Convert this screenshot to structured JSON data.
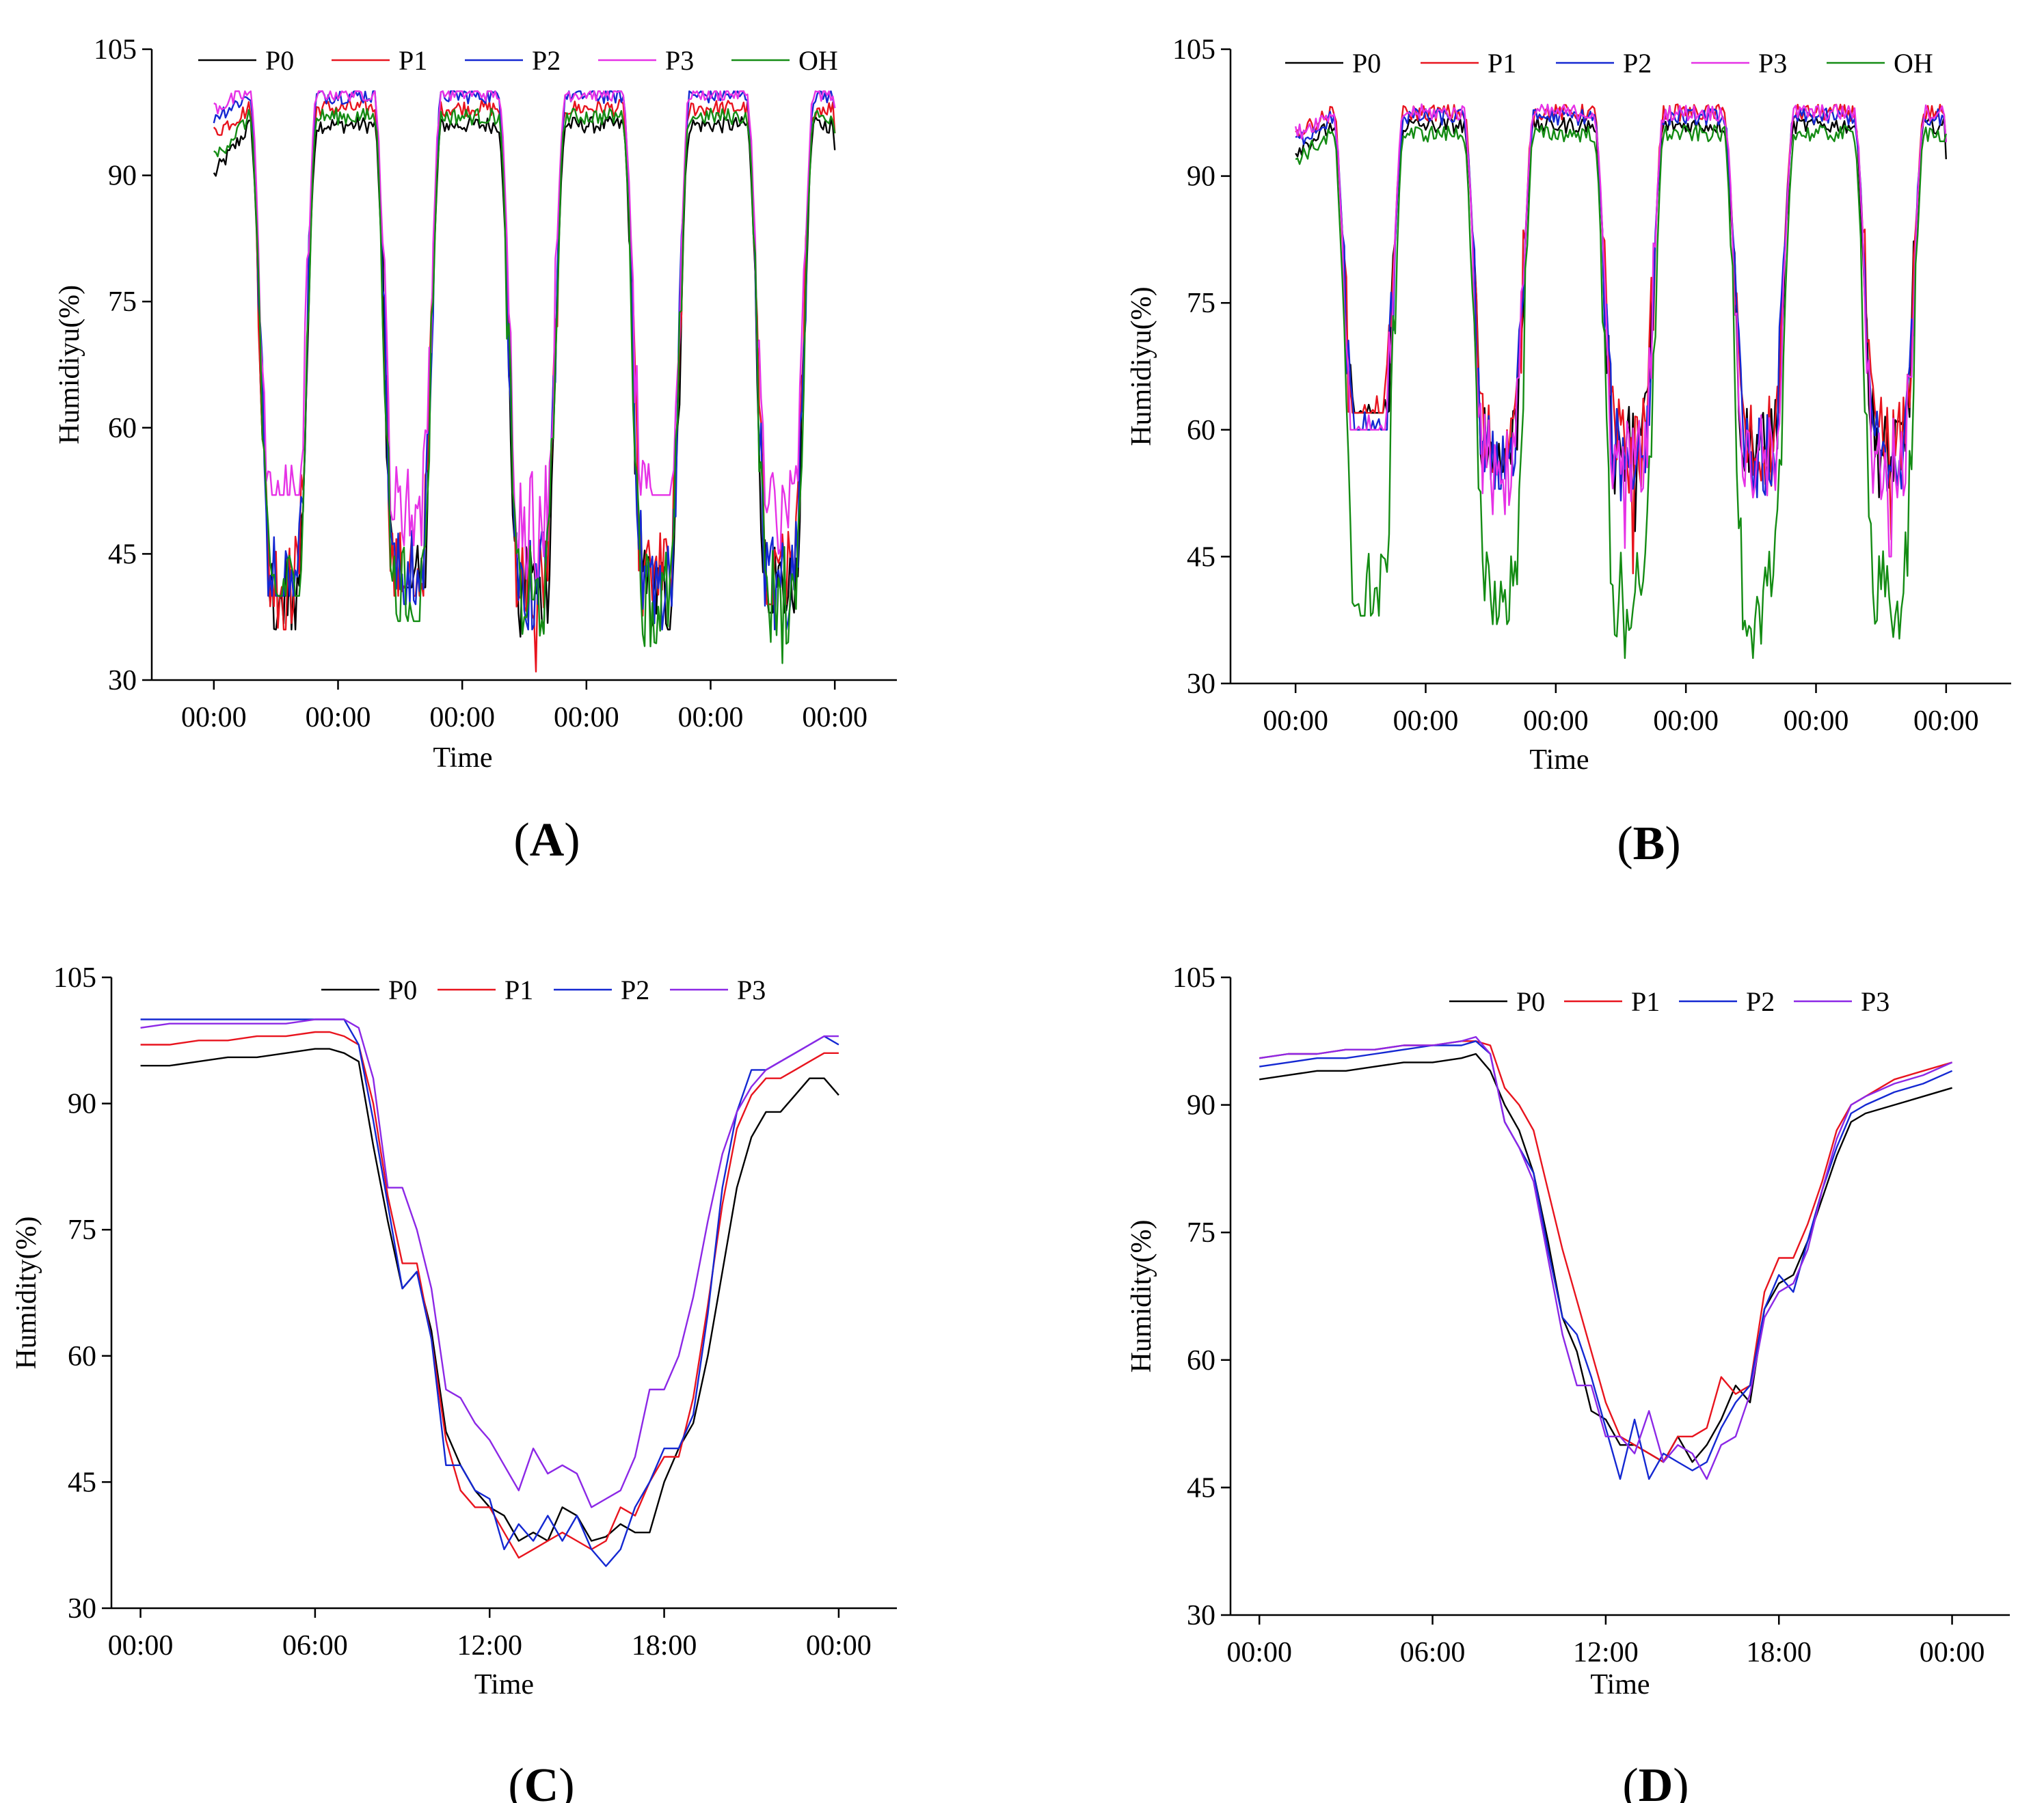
{
  "chart_data": [
    {
      "id": "A",
      "type": "line",
      "panel_label": "A",
      "xlabel": "Time",
      "ylabel": "Humidiyu(%)",
      "ylim": [
        30,
        105
      ],
      "yticks": [
        "30",
        "45",
        "60",
        "75",
        "90",
        "105"
      ],
      "xlim": [
        -0.5,
        5.5
      ],
      "xtick_labels": [
        "00:00",
        "00:00",
        "00:00",
        "00:00",
        "00:00",
        "00:00"
      ],
      "legend": [
        "P0",
        "P1",
        "P2",
        "P3",
        "OH"
      ],
      "series": [
        {
          "name": "P0",
          "color": "#000000",
          "kind": "multi",
          "night": 96,
          "day": 40,
          "start": 90,
          "end": 93,
          "day_mins": [
            36,
            41,
            35,
            36,
            38
          ]
        },
        {
          "name": "P1",
          "color": "#e8141e",
          "kind": "multi",
          "night": 98,
          "day": 42,
          "start": 95,
          "end": 95,
          "day_mins": [
            36,
            40,
            31,
            37,
            39
          ]
        },
        {
          "name": "P2",
          "color": "#1428d2",
          "kind": "multi",
          "night": 99.5,
          "day": 42,
          "start": 97,
          "end": 98,
          "day_mins": [
            40,
            39,
            36,
            36,
            36
          ]
        },
        {
          "name": "P3",
          "color": "#e632e6",
          "kind": "multi",
          "night": 99.8,
          "day": 50,
          "start": 98,
          "end": 98,
          "day_mins": [
            52,
            46,
            42,
            52,
            45
          ]
        },
        {
          "name": "OH",
          "color": "#148c14",
          "kind": "multi",
          "night": 97,
          "day": 40,
          "start": 92,
          "end": 95,
          "day_mins": [
            40,
            37,
            33,
            34,
            32
          ]
        }
      ]
    },
    {
      "id": "B",
      "type": "line",
      "panel_label": "B",
      "xlabel": "Time",
      "ylabel": "Humidiyu(%)",
      "ylim": [
        30,
        105
      ],
      "yticks": [
        "30",
        "45",
        "60",
        "75",
        "90",
        "105"
      ],
      "xlim": [
        -0.5,
        5.5
      ],
      "xtick_labels": [
        "00:00",
        "00:00",
        "00:00",
        "00:00",
        "00:00",
        "00:00"
      ],
      "legend": [
        "P0",
        "P1",
        "P2",
        "P3",
        "OH"
      ],
      "series": [
        {
          "name": "P0",
          "color": "#000000",
          "kind": "multi",
          "night": 96,
          "day": 58,
          "start": 93,
          "end": 92,
          "day_mins": [
            62,
            55,
            48,
            55,
            48
          ]
        },
        {
          "name": "P1",
          "color": "#e8141e",
          "kind": "multi",
          "night": 97.5,
          "day": 58,
          "start": 95,
          "end": 94,
          "day_mins": [
            62,
            55,
            43,
            49,
            47
          ]
        },
        {
          "name": "P2",
          "color": "#1428d2",
          "kind": "multi",
          "night": 97,
          "day": 57,
          "start": 94,
          "end": 94,
          "day_mins": [
            60,
            53,
            47,
            52,
            46
          ]
        },
        {
          "name": "P3",
          "color": "#e632e6",
          "kind": "multi",
          "night": 97.5,
          "day": 56,
          "start": 95,
          "end": 94,
          "day_mins": [
            60,
            50,
            46,
            50,
            45
          ]
        },
        {
          "name": "OH",
          "color": "#148c14",
          "kind": "multi",
          "night": 95,
          "day": 40,
          "start": 92,
          "end": 95,
          "day_mins": [
            38,
            37,
            33,
            33,
            32
          ]
        }
      ]
    },
    {
      "id": "C",
      "type": "line",
      "panel_label": "C",
      "xlabel": "Time",
      "ylabel": "Humidity(%)",
      "ylim": [
        30,
        105
      ],
      "yticks": [
        "30",
        "45",
        "60",
        "75",
        "90",
        "105"
      ],
      "xlim": [
        -1,
        26
      ],
      "xticks": [
        0,
        6,
        12,
        18,
        24
      ],
      "xtick_labels": [
        "00:00",
        "06:00",
        "12:00",
        "18:00",
        "00:00"
      ],
      "legend": [
        "P0",
        "P1",
        "P2",
        "P3"
      ],
      "series": [
        {
          "name": "P0",
          "color": "#000000",
          "kind": "points",
          "x": [
            0,
            1,
            2,
            3,
            4,
            5,
            6,
            6.5,
            7,
            7.5,
            8,
            8.5,
            9,
            9.5,
            10,
            10.5,
            11,
            11.5,
            12,
            12.5,
            13,
            13.5,
            14,
            14.5,
            15,
            15.5,
            16,
            16.5,
            17,
            17.5,
            18,
            18.5,
            19,
            19.5,
            20,
            20.5,
            21,
            21.5,
            22,
            22.5,
            23,
            23.5,
            24
          ],
          "y": [
            94.5,
            94.5,
            95,
            95.5,
            95.5,
            96,
            96.5,
            96.5,
            96,
            95,
            85,
            76,
            68,
            70,
            63,
            51,
            47,
            44,
            42,
            41,
            38,
            39,
            38,
            42,
            41,
            38,
            38.5,
            40,
            39,
            39,
            45,
            49,
            52,
            60,
            70,
            80,
            86,
            89,
            89,
            91,
            93,
            93,
            91
          ]
        },
        {
          "name": "P1",
          "color": "#e8141e",
          "kind": "points",
          "x": [
            0,
            1,
            2,
            3,
            4,
            5,
            6,
            6.5,
            7,
            7.5,
            8,
            8.5,
            9,
            9.5,
            10,
            10.5,
            11,
            11.5,
            12,
            12.5,
            13,
            13.5,
            14,
            14.5,
            15,
            15.5,
            16,
            16.5,
            17,
            17.5,
            18,
            18.5,
            19,
            19.5,
            20,
            20.5,
            21,
            21.5,
            22,
            22.5,
            23,
            23.5,
            24
          ],
          "y": [
            97,
            97,
            97.5,
            97.5,
            98,
            98,
            98.5,
            98.5,
            98,
            97,
            90,
            79,
            71,
            71,
            62,
            50,
            44,
            42,
            42,
            39,
            36,
            37,
            38,
            39,
            38,
            37,
            38,
            42,
            41,
            45,
            48,
            48,
            55,
            66,
            78,
            87,
            91,
            93,
            93,
            94,
            95,
            96,
            96
          ]
        },
        {
          "name": "P2",
          "color": "#1428d2",
          "kind": "points",
          "x": [
            0,
            1,
            2,
            3,
            4,
            5,
            6,
            6.5,
            7,
            7.5,
            8,
            8.5,
            9,
            9.5,
            10,
            10.5,
            11,
            11.5,
            12,
            12.5,
            13,
            13.5,
            14,
            14.5,
            15,
            15.5,
            16,
            16.5,
            17,
            17.5,
            18,
            18.5,
            19,
            19.5,
            20,
            20.5,
            21,
            21.5,
            22,
            22.5,
            23,
            23.5,
            24
          ],
          "y": [
            100,
            100,
            100,
            100,
            100,
            100,
            100,
            100,
            100,
            97,
            88,
            78,
            68,
            70,
            62,
            47,
            47,
            44,
            43,
            37,
            40,
            38,
            41,
            38,
            41,
            37,
            35,
            37,
            42,
            45,
            49,
            49,
            53,
            65,
            80,
            89,
            94,
            94,
            95,
            96,
            97,
            98,
            97
          ]
        },
        {
          "name": "P3",
          "color": "#8c28e6",
          "kind": "points",
          "x": [
            0,
            1,
            2,
            3,
            4,
            5,
            6,
            6.5,
            7,
            7.5,
            8,
            8.5,
            9,
            9.5,
            10,
            10.5,
            11,
            11.5,
            12,
            12.5,
            13,
            13.5,
            14,
            14.5,
            15,
            15.5,
            16,
            16.5,
            17,
            17.5,
            18,
            18.5,
            19,
            19.5,
            20,
            20.5,
            21,
            21.5,
            22,
            22.5,
            23,
            23.5,
            24
          ],
          "y": [
            99,
            99.5,
            99.5,
            99.5,
            99.5,
            99.5,
            100,
            100,
            100,
            99,
            93,
            80,
            80,
            75,
            68,
            56,
            55,
            52,
            50,
            47,
            44,
            49,
            46,
            47,
            46,
            42,
            43,
            44,
            48,
            56,
            56,
            60,
            67,
            76,
            84,
            89,
            92,
            94,
            95,
            96,
            97,
            98,
            98
          ]
        }
      ]
    },
    {
      "id": "D",
      "type": "line",
      "panel_label": "D",
      "xlabel": "Time",
      "ylabel": "Humidity(%)",
      "ylim": [
        30,
        105
      ],
      "yticks": [
        "30",
        "45",
        "60",
        "75",
        "90",
        "105"
      ],
      "xlim": [
        -1,
        26
      ],
      "xticks": [
        0,
        6,
        12,
        18,
        24
      ],
      "xtick_labels": [
        "00:00",
        "06:00",
        "12:00",
        "18:00",
        "00:00"
      ],
      "legend": [
        "P0",
        "P1",
        "P2",
        "P3"
      ],
      "series": [
        {
          "name": "P0",
          "color": "#000000",
          "kind": "points",
          "x": [
            0,
            1,
            2,
            3,
            4,
            5,
            6,
            7,
            7.5,
            8,
            8.5,
            9,
            9.5,
            10,
            10.5,
            11,
            11.5,
            12,
            12.5,
            13,
            13.5,
            14,
            14.5,
            15,
            15.5,
            16,
            16.5,
            17,
            17.5,
            18,
            18.5,
            19,
            19.5,
            20,
            20.5,
            21,
            22,
            23,
            24
          ],
          "y": [
            93,
            93.5,
            94,
            94,
            94.5,
            95,
            95,
            95.5,
            96,
            94,
            90,
            87,
            82,
            74,
            65,
            61,
            54,
            53,
            50,
            50,
            49,
            48,
            51,
            48,
            50,
            53,
            57,
            55,
            66,
            69,
            70,
            74,
            79,
            84,
            88,
            89,
            90,
            91,
            92
          ]
        },
        {
          "name": "P1",
          "color": "#e8141e",
          "kind": "points",
          "x": [
            0,
            1,
            2,
            3,
            4,
            5,
            6,
            7,
            7.5,
            8,
            8.5,
            9,
            9.5,
            10,
            10.5,
            11,
            11.5,
            12,
            12.5,
            13,
            13.5,
            14,
            14.5,
            15,
            15.5,
            16,
            16.5,
            17,
            17.5,
            18,
            18.5,
            19,
            19.5,
            20,
            20.5,
            21,
            22,
            23,
            24
          ],
          "y": [
            95.5,
            96,
            96,
            96.5,
            96.5,
            97,
            97,
            97.5,
            97.5,
            97,
            92,
            90,
            87,
            80,
            73,
            67,
            61,
            55,
            51,
            50,
            49,
            48,
            51,
            51,
            52,
            58,
            56,
            57,
            68,
            72,
            72,
            76,
            81,
            87,
            90,
            91,
            93,
            94,
            95
          ]
        },
        {
          "name": "P2",
          "color": "#1428d2",
          "kind": "points",
          "x": [
            0,
            1,
            2,
            3,
            4,
            5,
            6,
            7,
            7.5,
            8,
            8.5,
            9,
            9.5,
            10,
            10.5,
            11,
            11.5,
            12,
            12.5,
            13,
            13.5,
            14,
            14.5,
            15,
            15.5,
            16,
            16.5,
            17,
            17.5,
            18,
            18.5,
            19,
            19.5,
            20,
            20.5,
            21,
            22,
            23,
            24
          ],
          "y": [
            94.5,
            95,
            95.5,
            95.5,
            96,
            96.5,
            97,
            97,
            97.5,
            96,
            88,
            85,
            82,
            73,
            65,
            63,
            58,
            52,
            46,
            53,
            46,
            49,
            48,
            47,
            48,
            52,
            55,
            57,
            66,
            70,
            68,
            74,
            80,
            85,
            89,
            90,
            91.5,
            92.5,
            94
          ]
        },
        {
          "name": "P3",
          "color": "#8c28e6",
          "kind": "points",
          "x": [
            0,
            1,
            2,
            3,
            4,
            5,
            6,
            7,
            7.5,
            8,
            8.5,
            9,
            9.5,
            10,
            10.5,
            11,
            11.5,
            12,
            12.5,
            13,
            13.5,
            14,
            14.5,
            15,
            15.5,
            16,
            16.5,
            17,
            17.5,
            18,
            18.5,
            19,
            19.5,
            20,
            20.5,
            21,
            22,
            23,
            24
          ],
          "y": [
            95.5,
            96,
            96,
            96.5,
            96.5,
            97,
            97,
            97.5,
            98,
            96,
            88,
            85,
            81,
            72,
            63,
            57,
            57,
            51,
            51,
            49,
            54,
            48,
            50,
            49,
            46,
            50,
            51,
            56,
            65,
            68,
            69,
            73,
            80,
            86,
            90,
            91,
            92.5,
            93.5,
            95
          ]
        }
      ]
    }
  ]
}
